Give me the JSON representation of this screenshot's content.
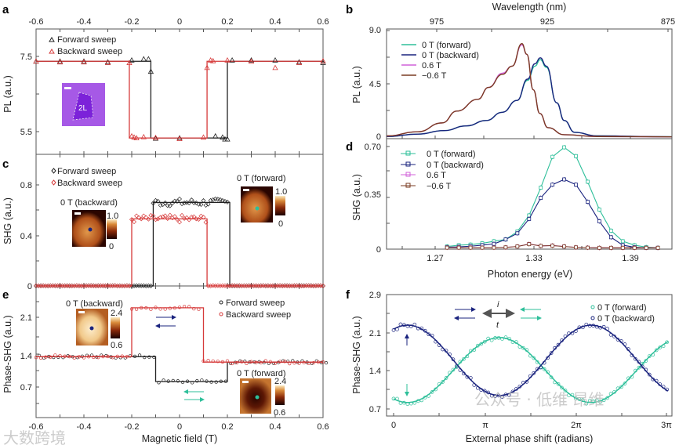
{
  "panel_labels": {
    "a": "a",
    "b": "b",
    "c": "c",
    "d": "d",
    "e": "e",
    "f": "f"
  },
  "watermarks": {
    "right": "公众号 · 低维 昂维",
    "left": "大数跨境"
  },
  "colors": {
    "forward_black": "#222222",
    "backward_red": "#d63a3a",
    "teal": "#2ebf9a",
    "navy": "#1a237e",
    "magenta": "#d060d8",
    "brown": "#7a3b22"
  },
  "chart_data": [
    {
      "id": "a",
      "type": "scatter",
      "ylabel": "PL (a.u.)",
      "top_xticks": [
        "-0.6",
        "-0.4",
        "-0.2",
        "0",
        "0.2",
        "0.4",
        "0.6"
      ],
      "xlim": [
        -0.6,
        0.6
      ],
      "yticks": [
        "7.5",
        "5.5"
      ],
      "inset_label": "2L",
      "legend": [
        "Forward sweep",
        "Backward sweep"
      ],
      "series": [
        {
          "name": "Forward sweep",
          "points": [
            [
              -0.6,
              7.37
            ],
            [
              -0.5,
              7.37
            ],
            [
              -0.4,
              7.37
            ],
            [
              -0.3,
              7.35
            ],
            [
              -0.2,
              7.4
            ],
            [
              -0.15,
              7.43
            ],
            [
              -0.13,
              7.43
            ],
            [
              -0.12,
              7.1
            ],
            [
              -0.1,
              5.32
            ],
            [
              0,
              5.33
            ],
            [
              0.15,
              5.38
            ],
            [
              0.18,
              5.35
            ],
            [
              0.19,
              5.3
            ],
            [
              0.2,
              5.3
            ],
            [
              0.22,
              7.4
            ],
            [
              0.3,
              7.4
            ],
            [
              0.4,
              7.4
            ],
            [
              0.5,
              7.35
            ],
            [
              0.6,
              7.33
            ]
          ],
          "levels": {
            "high": 7.37,
            "low": 5.33
          },
          "switch": [
            -0.12,
            0.2
          ]
        },
        {
          "name": "Backward sweep",
          "points": [
            [
              -0.6,
              7.37
            ],
            [
              -0.5,
              7.35
            ],
            [
              -0.4,
              7.35
            ],
            [
              -0.3,
              7.33
            ],
            [
              -0.21,
              7.33
            ],
            [
              -0.2,
              5.38
            ],
            [
              -0.19,
              5.35
            ],
            [
              -0.18,
              5.33
            ],
            [
              -0.15,
              5.36
            ],
            [
              -0.1,
              5.34
            ],
            [
              0,
              5.31
            ],
            [
              0.1,
              5.35
            ],
            [
              0.115,
              7.2
            ],
            [
              0.13,
              7.4
            ],
            [
              0.14,
              7.38
            ],
            [
              0.2,
              7.4
            ],
            [
              0.3,
              7.37
            ],
            [
              0.4,
              7.2
            ],
            [
              0.5,
              7.33
            ],
            [
              0.6,
              7.38
            ]
          ],
          "levels": {
            "high": 7.37,
            "low": 5.33
          },
          "switch": [
            -0.21,
            0.115
          ]
        }
      ]
    },
    {
      "id": "b",
      "type": "line",
      "title": "Wavelength (nm)",
      "ylabel": "PL (a.u.)",
      "top_xticks": [
        "975",
        "925",
        "875"
      ],
      "yticks": [
        "9.0",
        "4.5",
        "0"
      ],
      "ylim": [
        0,
        9
      ],
      "series": [
        {
          "name": "0 T (forward)",
          "x_eV": [
            1.241,
            1.26,
            1.276,
            1.29,
            1.302,
            1.312,
            1.321,
            1.3275,
            1.332,
            1.3353,
            1.339,
            1.3454,
            1.35,
            1.3565,
            1.37,
            1.416
          ],
          "y": [
            0.05,
            0.25,
            0.55,
            0.95,
            1.4,
            2.1,
            3.1,
            4.8,
            6.0,
            6.55,
            5.9,
            2.9,
            1.4,
            0.4,
            0.1,
            0.03
          ]
        },
        {
          "name": "0 T (backward)",
          "x_eV": [
            1.241,
            1.26,
            1.276,
            1.29,
            1.302,
            1.312,
            1.321,
            1.3275,
            1.332,
            1.3353,
            1.339,
            1.3454,
            1.35,
            1.3565,
            1.37,
            1.416
          ],
          "y": [
            0.05,
            0.25,
            0.55,
            0.95,
            1.4,
            2.1,
            3.1,
            4.9,
            6.2,
            6.7,
            6.0,
            2.9,
            1.4,
            0.4,
            0.1,
            0.03
          ]
        },
        {
          "name": "0.6 T",
          "x_eV": [
            1.241,
            1.26,
            1.275,
            1.284,
            1.297,
            1.3035,
            1.312,
            1.318,
            1.324,
            1.327,
            1.331,
            1.335,
            1.34,
            1.35,
            1.37,
            1.416
          ],
          "y": [
            0.1,
            0.45,
            1.2,
            2.2,
            3.2,
            4.2,
            5.4,
            6.0,
            7.8,
            7.0,
            4.0,
            2.0,
            0.8,
            0.2,
            0.05,
            0.02
          ]
        },
        {
          "name": "−0.6 T",
          "x_eV": [
            1.241,
            1.26,
            1.275,
            1.284,
            1.297,
            1.3035,
            1.312,
            1.318,
            1.324,
            1.327,
            1.331,
            1.335,
            1.34,
            1.35,
            1.37,
            1.416
          ],
          "y": [
            0.1,
            0.45,
            1.2,
            2.2,
            3.2,
            4.2,
            5.3,
            6.0,
            7.9,
            7.0,
            4.0,
            2.0,
            0.8,
            0.2,
            0.05,
            0.02
          ]
        }
      ]
    },
    {
      "id": "c",
      "type": "scatter",
      "ylabel": "SHG (a.u.)",
      "yticks": [
        "0.8",
        "0.4",
        "0"
      ],
      "legend": [
        "Forward sweep",
        "Backward sweep"
      ],
      "insets": {
        "backward": {
          "title": "0 T (backward)",
          "max": "1.0",
          "min": "0"
        },
        "forward": {
          "title": "0 T (forward)",
          "max": "1.0",
          "min": "0"
        }
      },
      "series": [
        {
          "name": "Forward sweep",
          "low": 0,
          "high": 0.66,
          "switch": [
            -0.11,
            0.21
          ],
          "point_spacing": 0.01
        },
        {
          "name": "Backward sweep",
          "low": 0,
          "high": 0.53,
          "switch": [
            -0.2,
            0.115
          ],
          "point_spacing": 0.01
        }
      ]
    },
    {
      "id": "d",
      "type": "line",
      "xlabel": "Photon energy (eV)",
      "ylabel": "SHG (a.u.)",
      "xticks": [
        "1.27",
        "1.33",
        "1.39"
      ],
      "yticks": [
        "0.70",
        "0.35",
        "0"
      ],
      "ylim": [
        0,
        0.7
      ],
      "x": [
        1.278,
        1.2852,
        1.2924,
        1.2996,
        1.3068,
        1.314,
        1.3212,
        1.3284,
        1.3356,
        1.3428,
        1.35,
        1.3572,
        1.3644,
        1.3716,
        1.3788,
        1.386,
        1.3932,
        1.4004,
        1.4076
      ],
      "series": [
        {
          "name": "0 T (forward)",
          "values": [
            0.018,
            0.027,
            0.031,
            0.04,
            0.054,
            0.066,
            0.12,
            0.23,
            0.42,
            0.63,
            0.695,
            0.635,
            0.46,
            0.27,
            0.126,
            0.054,
            0.027,
            0.014,
            0.009
          ]
        },
        {
          "name": "0 T (backward)",
          "values": [
            0.013,
            0.016,
            0.02,
            0.027,
            0.036,
            0.066,
            0.108,
            0.206,
            0.35,
            0.44,
            0.476,
            0.44,
            0.323,
            0.19,
            0.081,
            0.027,
            0.013,
            0.009,
            0.009
          ]
        },
        {
          "name": "0.6 T",
          "values": [
            0.01,
            0.01,
            0.01,
            0.01,
            0.01,
            0.012,
            0.018,
            0.035,
            0.022,
            0.025,
            0.018,
            0.012,
            0.01,
            0.009,
            0.009,
            0.009,
            0.009,
            0.009,
            0.009
          ]
        },
        {
          "name": "−0.6 T",
          "values": [
            0.01,
            0.01,
            0.01,
            0.01,
            0.01,
            0.012,
            0.018,
            0.034,
            0.022,
            0.024,
            0.018,
            0.012,
            0.01,
            0.009,
            0.009,
            0.009,
            0.009,
            0.009,
            0.009
          ]
        }
      ]
    },
    {
      "id": "e",
      "type": "scatter",
      "xlabel": "Magnetic field (T)",
      "ylabel": "Phase-SHG (a.u.)",
      "xticks": [
        "-0.6",
        "-0.4",
        "-0.2",
        "0",
        "0.2",
        "0.4",
        "0.6"
      ],
      "yticks": [
        "2.1",
        "1.4",
        "0.7"
      ],
      "legend": [
        "Forward sweep",
        "Backward sweep"
      ],
      "insets": {
        "backward": {
          "title": "0 T (backward)",
          "max": "2.4",
          "min": "0.6"
        },
        "forward": {
          "title": "0 T (forward)",
          "max": "2.4",
          "min": "0.6"
        }
      },
      "series": [
        {
          "name": "Forward sweep",
          "levels": [
            1.31,
            0.81,
            1.2
          ],
          "switch": [
            -0.1,
            0.2
          ],
          "point_spacing": 0.02
        },
        {
          "name": "Backward sweep",
          "levels": [
            1.31,
            2.29,
            1.2
          ],
          "switch": [
            -0.2,
            0.1
          ],
          "point_spacing": 0.02
        }
      ]
    },
    {
      "id": "f",
      "type": "scatter",
      "xlabel": "External phase shift (radians)",
      "ylabel": "Phase-SHG (a.u.)",
      "xticks": [
        "0",
        "π",
        "2π",
        "3π"
      ],
      "yticks": [
        "2.9",
        "2.1",
        "1.4",
        "0.7"
      ],
      "xlim_radians": [
        0,
        9.42
      ],
      "labels": {
        "i": "i",
        "t": "t"
      },
      "series": [
        {
          "name": "0 T (forward)",
          "model": "offset - amp*cos(x - phase)",
          "offset": 1.42,
          "amp": 0.6,
          "phase": 0.48
        },
        {
          "name": "0 T (backward)",
          "model": "offset + amp*cos(x - phase)",
          "offset": 1.6,
          "amp": 0.65,
          "phase": 0.48
        }
      ]
    }
  ]
}
